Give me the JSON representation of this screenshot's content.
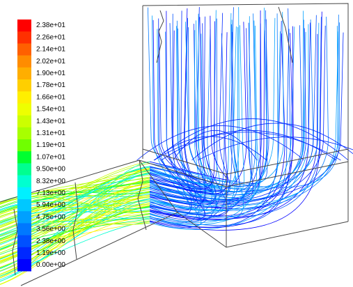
{
  "legend": {
    "labels": [
      "2.38e+01",
      "2.26e+01",
      "2.14e+01",
      "2.02e+01",
      "1.90e+01",
      "1.78e+01",
      "1.66e+01",
      "1.54e+01",
      "1.43e+01",
      "1.31e+01",
      "1.19e+01",
      "1.07e+01",
      "9.50e+00",
      "8.32e+00",
      "7.13e+00",
      "5.94e+00",
      "4.75e+00",
      "3.56e+00",
      "2.38e+00",
      "1.19e+00",
      "0.00e+00"
    ],
    "colors": [
      "#ff0000",
      "#ff3000",
      "#ff6000",
      "#ff8c00",
      "#ffae00",
      "#ffcf00",
      "#ffef00",
      "#eeff00",
      "#ccff00",
      "#a8ff00",
      "#70ff00",
      "#00ff30",
      "#00ff90",
      "#00ffd0",
      "#00f0ff",
      "#00c8ff",
      "#00a0ff",
      "#0078ff",
      "#0050ff",
      "#0028ff",
      "#0000ff"
    ]
  }
}
